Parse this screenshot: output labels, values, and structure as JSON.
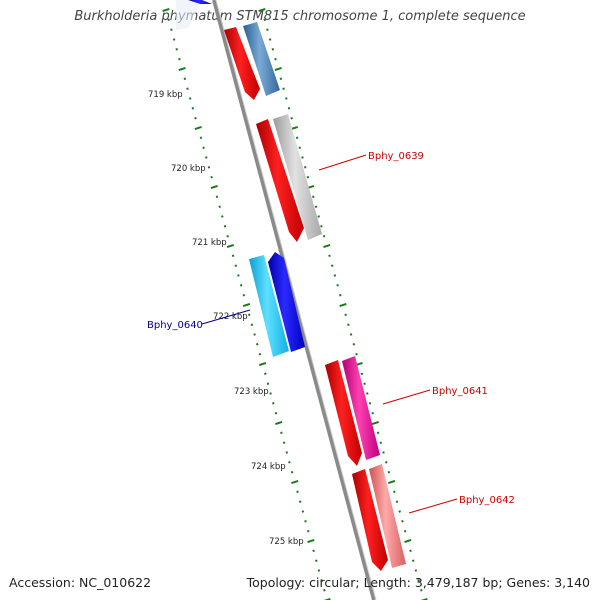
{
  "header": {
    "title": "Burkholderia phymatum STM815 chromosome 1, complete sequence"
  },
  "footer": {
    "accession": "Accession: NC_010622",
    "summary": "Topology: circular; Length: 3,479,187 bp; Genes: 3,140"
  },
  "map": {
    "kbp_labels": [
      "719 kbp",
      "720 kbp",
      "721 kbp",
      "722 kbp",
      "723 kbp",
      "724 kbp",
      "725 kbp"
    ],
    "genes": [
      {
        "label": "Bphy_0639",
        "label_color": "#cc0000",
        "cds_color": "#c8c8c8"
      },
      {
        "label": "Bphy_0640",
        "label_color": "#00008b",
        "cds_color": "#0000ee"
      },
      {
        "label": "Bphy_0641",
        "label_color": "#cc0000",
        "cds_color": "#ee1493"
      },
      {
        "label": "Bphy_0642",
        "label_color": "#cc0000",
        "cds_color": "#f08080"
      }
    ],
    "colors": {
      "backbone": "#8a8a8a",
      "tick": "#1a7a1a",
      "gene_red": "#ee0000",
      "top_blue": "#4f86b5",
      "cyan": "#1ec8f0"
    }
  }
}
